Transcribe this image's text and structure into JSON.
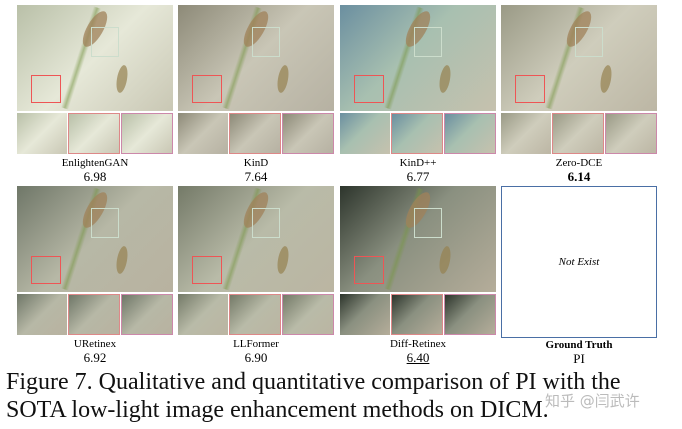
{
  "panels": [
    {
      "method": "EnlightenGAN",
      "pi": "6.98",
      "bg": "linear-gradient(135deg,#b9c0a8,#e6e8d8 50%,#c9c7b4)"
    },
    {
      "method": "KinD",
      "pi": "7.64",
      "bg": "linear-gradient(135deg,#8d8a78,#c9c6b6 50%,#b6b1a2)"
    },
    {
      "method": "KinD++",
      "pi": "6.77",
      "bg": "linear-gradient(135deg,#6b8fa0,#a8c0b0 45%,#c6c1ae)"
    },
    {
      "method": "Zero-DCE",
      "pi": "6.14",
      "emphasis": "bold",
      "bg": "linear-gradient(135deg,#9a9a86,#cfcdbc 50%,#bcb6a4)"
    },
    {
      "method": "URetinex",
      "pi": "6.92",
      "bg": "linear-gradient(135deg,#6f7768,#b7b8a6 50%,#b8b2a0)"
    },
    {
      "method": "LLFormer",
      "pi": "6.90",
      "bg": "linear-gradient(135deg,#747a68,#b9bba8 50%,#bbb5a2)"
    },
    {
      "method": "Diff-Retinex",
      "pi": "6.40",
      "emphasis": "underline",
      "bg": "linear-gradient(135deg,#2d352c,#8a9080 45%,#b5ad9a)"
    },
    {
      "method": "Ground Truth",
      "pi": "PI",
      "placeholder": "Not Exist"
    }
  ],
  "caption": "Figure 7. Qualitative and quantitative comparison of PI with the SOTA low-light image enhancement methods on DICM.",
  "watermark": "知乎 @闫武许"
}
